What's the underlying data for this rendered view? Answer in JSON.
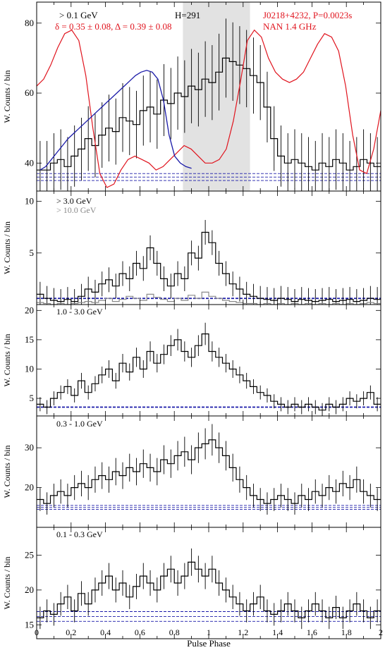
{
  "figure": {
    "xlabel": "Pulse Phase",
    "ylabel": "W. Counts / bin",
    "x_ticks": [
      "0",
      "0.2",
      "0.4",
      "0.6",
      "0.8",
      "1",
      "1.2",
      "1.4",
      "1.6",
      "1.8",
      "2"
    ],
    "colors": {
      "histogram": "#000000",
      "radio": "#e0141e",
      "background": "#1a1aa8",
      "fit": "#1a1aa8",
      "shade": "#e2e2e2",
      "secondary": "#8a8a8a"
    }
  },
  "chart_data": [
    {
      "type": "line",
      "panel": "top",
      "energy_label": "> 0.1 GeV",
      "stat_label": "H=291",
      "info_line1": "J0218+4232, P=0.0023s",
      "info_line2": "NAN 1.4 GHz",
      "delta_text": "δ = 0.35 ± 0.08, Δ = 0.39 ± 0.08",
      "xlim": [
        0,
        2
      ],
      "ylim": [
        32,
        86
      ],
      "yticks": [
        40,
        60,
        80
      ],
      "shaded_region": [
        0.85,
        1.24
      ],
      "background_levels": [
        35,
        36,
        37
      ],
      "series": [
        {
          "kind": "histogram",
          "values": [
            38,
            38,
            40,
            41,
            39,
            42,
            44,
            47,
            45,
            48,
            50,
            49,
            53,
            52,
            51,
            55,
            56,
            54,
            58,
            57,
            60,
            59,
            62,
            61,
            64,
            63,
            66,
            70,
            69,
            68,
            67,
            65,
            63,
            56,
            47,
            42,
            40,
            41,
            40,
            39,
            38,
            40,
            39,
            41,
            40,
            38,
            39,
            41,
            40,
            39
          ]
        },
        {
          "kind": "radio",
          "values": [
            62,
            64,
            68,
            73,
            77,
            78,
            75,
            65,
            50,
            37,
            33,
            34,
            38,
            41,
            42,
            41,
            40,
            38,
            39,
            41,
            43,
            45,
            44,
            42,
            40,
            40,
            41,
            44,
            52,
            63,
            75,
            78,
            76,
            70,
            66,
            64,
            63,
            64,
            66,
            70,
            74,
            77,
            76,
            72,
            62,
            48,
            38,
            37,
            44,
            55
          ]
        },
        {
          "kind": "fit",
          "values": [
            38,
            39,
            41,
            43,
            45,
            47,
            48.5,
            50,
            51.5,
            53,
            54.5,
            56,
            57.5,
            59,
            60.5,
            62,
            63.5,
            65,
            66,
            66.5,
            66,
            64,
            58,
            48,
            42,
            40,
            39,
            38.5
          ]
        }
      ]
    },
    {
      "type": "line",
      "panel": "above-3GeV",
      "energy_label": "> 3.0 GeV",
      "energy_label2": "> 10.0 GeV",
      "xlim": [
        0,
        2
      ],
      "ylim": [
        0,
        11
      ],
      "yticks": [
        5,
        10
      ],
      "background_levels": [
        0.6
      ],
      "series": [
        {
          "kind": "histogram",
          "values": [
            1.0,
            0.6,
            0.4,
            0.3,
            0.5,
            0.3,
            0.8,
            1.5,
            1.2,
            2.0,
            2.4,
            1.8,
            3.0,
            2.5,
            4.0,
            3.5,
            5.5,
            4.0,
            2.5,
            1.8,
            3.0,
            2.5,
            5.0,
            4.5,
            7.0,
            6.0,
            4.0,
            3.0,
            2.0,
            1.5,
            1.0,
            0.8,
            0.6,
            0.5,
            0.4,
            0.6,
            0.5,
            0.3,
            0.5,
            0.4,
            0.3,
            0.4,
            0.5,
            0.3,
            0.4,
            0.5,
            0.3,
            0.4,
            0.6,
            0.5
          ]
        },
        {
          "kind": "histogram-secondary",
          "values": [
            0.2,
            0.1,
            0.0,
            0.1,
            0.0,
            0.1,
            0.2,
            0.3,
            0.2,
            0.4,
            0.6,
            0.3,
            0.5,
            0.8,
            0.6,
            0.4,
            1.0,
            0.7,
            0.5,
            0.3,
            0.6,
            0.4,
            0.9,
            0.6,
            1.2,
            0.8,
            0.6,
            0.4,
            0.3,
            0.2,
            0.1,
            0.1,
            0.0,
            0.1,
            0.0,
            0.1,
            0.0,
            0.1,
            0.0,
            0.1,
            0.0,
            0.1,
            0.0,
            0.1,
            0.0,
            0.1,
            0.0,
            0.1,
            0.2,
            0.1
          ]
        }
      ]
    },
    {
      "type": "line",
      "panel": "1-3GeV",
      "energy_label": "1.0 - 3.0 GeV",
      "xlim": [
        0,
        2
      ],
      "ylim": [
        2,
        21
      ],
      "yticks": [
        5,
        10,
        15,
        20
      ],
      "background_levels": [
        3.5
      ],
      "series": [
        {
          "kind": "histogram",
          "values": [
            4,
            3.5,
            5,
            6,
            7,
            5.5,
            8,
            6,
            7.5,
            9,
            10,
            8,
            11,
            9.5,
            12,
            10,
            13,
            11,
            12.5,
            14,
            15,
            13,
            12,
            14,
            16,
            13,
            12,
            11,
            10,
            9,
            8,
            7,
            6,
            5.5,
            4.5,
            4,
            3.5,
            4,
            3.5,
            4,
            3.5,
            3,
            4,
            3.5,
            4,
            5,
            4.5,
            5,
            6,
            4
          ]
        }
      ]
    },
    {
      "type": "line",
      "panel": "0.3-1GeV",
      "energy_label": "0.3 - 1.0 GeV",
      "xlim": [
        0,
        2
      ],
      "ylim": [
        10,
        38
      ],
      "yticks": [
        20,
        30
      ],
      "background_levels": [
        14.5,
        15,
        15.5
      ],
      "series": [
        {
          "kind": "histogram",
          "values": [
            17,
            16,
            18,
            19,
            18,
            20,
            21,
            20,
            22,
            23,
            22,
            24,
            23,
            25,
            24,
            26,
            25,
            24,
            27,
            26,
            28,
            29,
            27,
            30,
            31,
            32,
            30,
            28,
            25,
            22,
            20,
            18,
            17,
            16,
            17,
            18,
            17,
            16,
            18,
            17,
            19,
            18,
            20,
            19,
            21,
            20,
            22,
            19,
            18,
            17
          ]
        }
      ]
    },
    {
      "type": "line",
      "panel": "0.1-0.3GeV",
      "energy_label": "0.1 - 0.3 GeV",
      "xlim": [
        0,
        2
      ],
      "ylim": [
        13,
        29
      ],
      "yticks": [
        15,
        20,
        25
      ],
      "background_levels": [
        15.5,
        16.2,
        16.9
      ],
      "series": [
        {
          "kind": "histogram",
          "values": [
            16,
            17,
            16.5,
            18,
            19,
            17,
            19.5,
            18,
            20,
            21,
            22,
            20,
            21,
            19,
            20.5,
            22,
            21,
            20,
            22,
            23,
            21,
            22,
            24,
            23,
            22,
            23,
            21,
            20,
            19,
            18,
            17,
            18,
            19,
            17,
            16.5,
            17,
            18,
            17,
            16,
            17,
            18,
            17,
            16,
            17.5,
            16,
            17,
            18,
            17,
            16,
            17
          ]
        }
      ]
    }
  ]
}
